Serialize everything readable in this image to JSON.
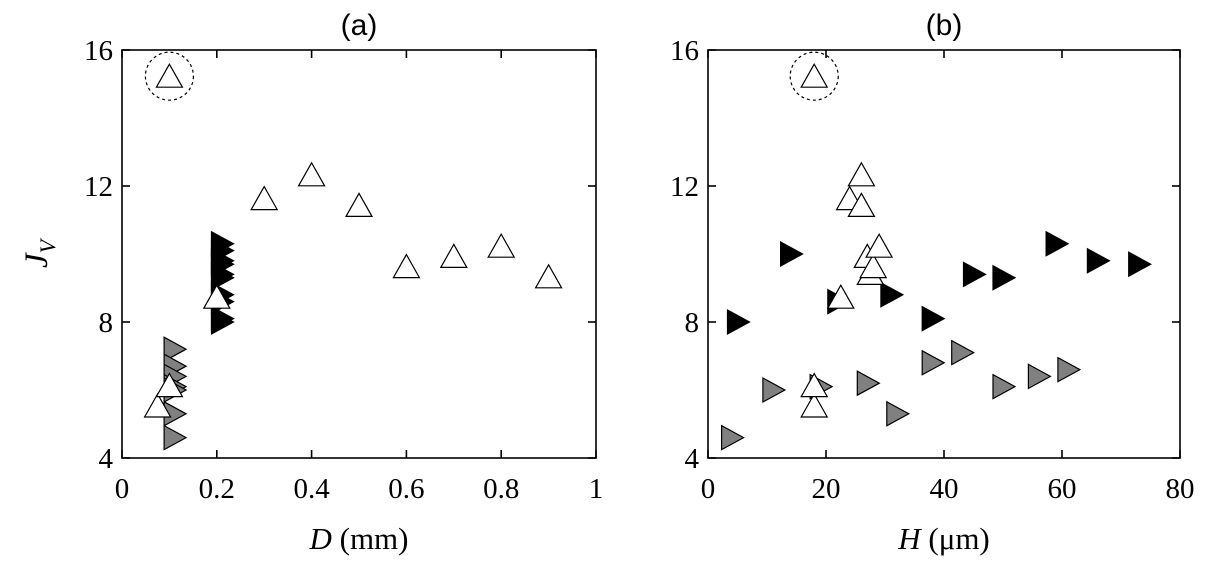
{
  "colors": {
    "white": "#ffffff",
    "gray": "#808080",
    "black": "#000000",
    "axis": "#000000"
  },
  "chart_data": [
    {
      "type": "scatter",
      "title": "(a)",
      "xlabel_italic": "D",
      "xlabel_unit": " (mm)",
      "ylabel_main": "J",
      "ylabel_sub": "V",
      "xlim": [
        0,
        1
      ],
      "ylim": [
        4,
        16
      ],
      "xticks": [
        0,
        0.2,
        0.4,
        0.6,
        0.8,
        1
      ],
      "xtick_labels": [
        "0",
        "0.2",
        "0.4",
        "0.6",
        "0.8",
        "1"
      ],
      "yticks": [
        4,
        8,
        12,
        16
      ],
      "ytick_labels": [
        "4",
        "8",
        "12",
        "16"
      ],
      "series": [
        {
          "marker": "triangle-right",
          "color": "gray",
          "points": [
            [
              0.11,
              7.2
            ],
            [
              0.11,
              6.7
            ],
            [
              0.11,
              6.4
            ],
            [
              0.11,
              6.1
            ],
            [
              0.11,
              6.0
            ],
            [
              0.11,
              5.3
            ],
            [
              0.11,
              4.6
            ]
          ]
        },
        {
          "marker": "triangle-right",
          "color": "black",
          "points": [
            [
              0.21,
              10.3
            ],
            [
              0.21,
              10.1
            ],
            [
              0.21,
              9.8
            ],
            [
              0.21,
              9.7
            ],
            [
              0.21,
              9.4
            ],
            [
              0.21,
              9.3
            ],
            [
              0.21,
              8.8
            ],
            [
              0.21,
              8.6
            ],
            [
              0.21,
              8.1
            ],
            [
              0.21,
              8.0
            ]
          ]
        },
        {
          "marker": "triangle-up",
          "color": "white",
          "points": [
            [
              0.1,
              15.2
            ],
            [
              0.075,
              5.5
            ],
            [
              0.1,
              6.1
            ],
            [
              0.2,
              8.7
            ],
            [
              0.3,
              11.6
            ],
            [
              0.4,
              12.3
            ],
            [
              0.5,
              11.4
            ],
            [
              0.6,
              9.6
            ],
            [
              0.7,
              9.9
            ],
            [
              0.8,
              10.2
            ],
            [
              0.9,
              9.3
            ]
          ]
        }
      ],
      "highlight": {
        "x": 0.1,
        "y": 15.2
      }
    },
    {
      "type": "scatter",
      "title": "(b)",
      "xlabel_italic": "H",
      "xlabel_unit": " (μm)",
      "xlim": [
        0,
        80
      ],
      "ylim": [
        4,
        16
      ],
      "xticks": [
        0,
        20,
        40,
        60,
        80
      ],
      "xtick_labels": [
        "0",
        "20",
        "40",
        "60",
        "80"
      ],
      "yticks": [
        4,
        8,
        12,
        16
      ],
      "ytick_labels": [
        "4",
        "8",
        "12",
        "16"
      ],
      "series": [
        {
          "marker": "triangle-right",
          "color": "gray",
          "points": [
            [
              4,
              4.6
            ],
            [
              11,
              6.0
            ],
            [
              19,
              6.1
            ],
            [
              27,
              6.2
            ],
            [
              32,
              5.3
            ],
            [
              38,
              6.8
            ],
            [
              43,
              7.1
            ],
            [
              50,
              6.1
            ],
            [
              56,
              6.4
            ],
            [
              61,
              6.6
            ]
          ]
        },
        {
          "marker": "triangle-right",
          "color": "black",
          "points": [
            [
              5,
              8.0
            ],
            [
              14,
              10.0
            ],
            [
              22,
              8.6
            ],
            [
              31,
              8.8
            ],
            [
              38,
              8.1
            ],
            [
              45,
              9.4
            ],
            [
              50,
              9.3
            ],
            [
              59,
              10.3
            ],
            [
              66,
              9.8
            ],
            [
              73,
              9.7
            ]
          ]
        },
        {
          "marker": "triangle-up",
          "color": "white",
          "points": [
            [
              18,
              15.2
            ],
            [
              18,
              5.5
            ],
            [
              18,
              6.1
            ],
            [
              22.5,
              8.7
            ],
            [
              24,
              11.6
            ],
            [
              26,
              12.3
            ],
            [
              26,
              11.4
            ],
            [
              27,
              9.9
            ],
            [
              27.5,
              9.4
            ],
            [
              28,
              9.6
            ],
            [
              29,
              10.2
            ]
          ]
        }
      ],
      "highlight": {
        "x": 18,
        "y": 15.2
      }
    }
  ]
}
